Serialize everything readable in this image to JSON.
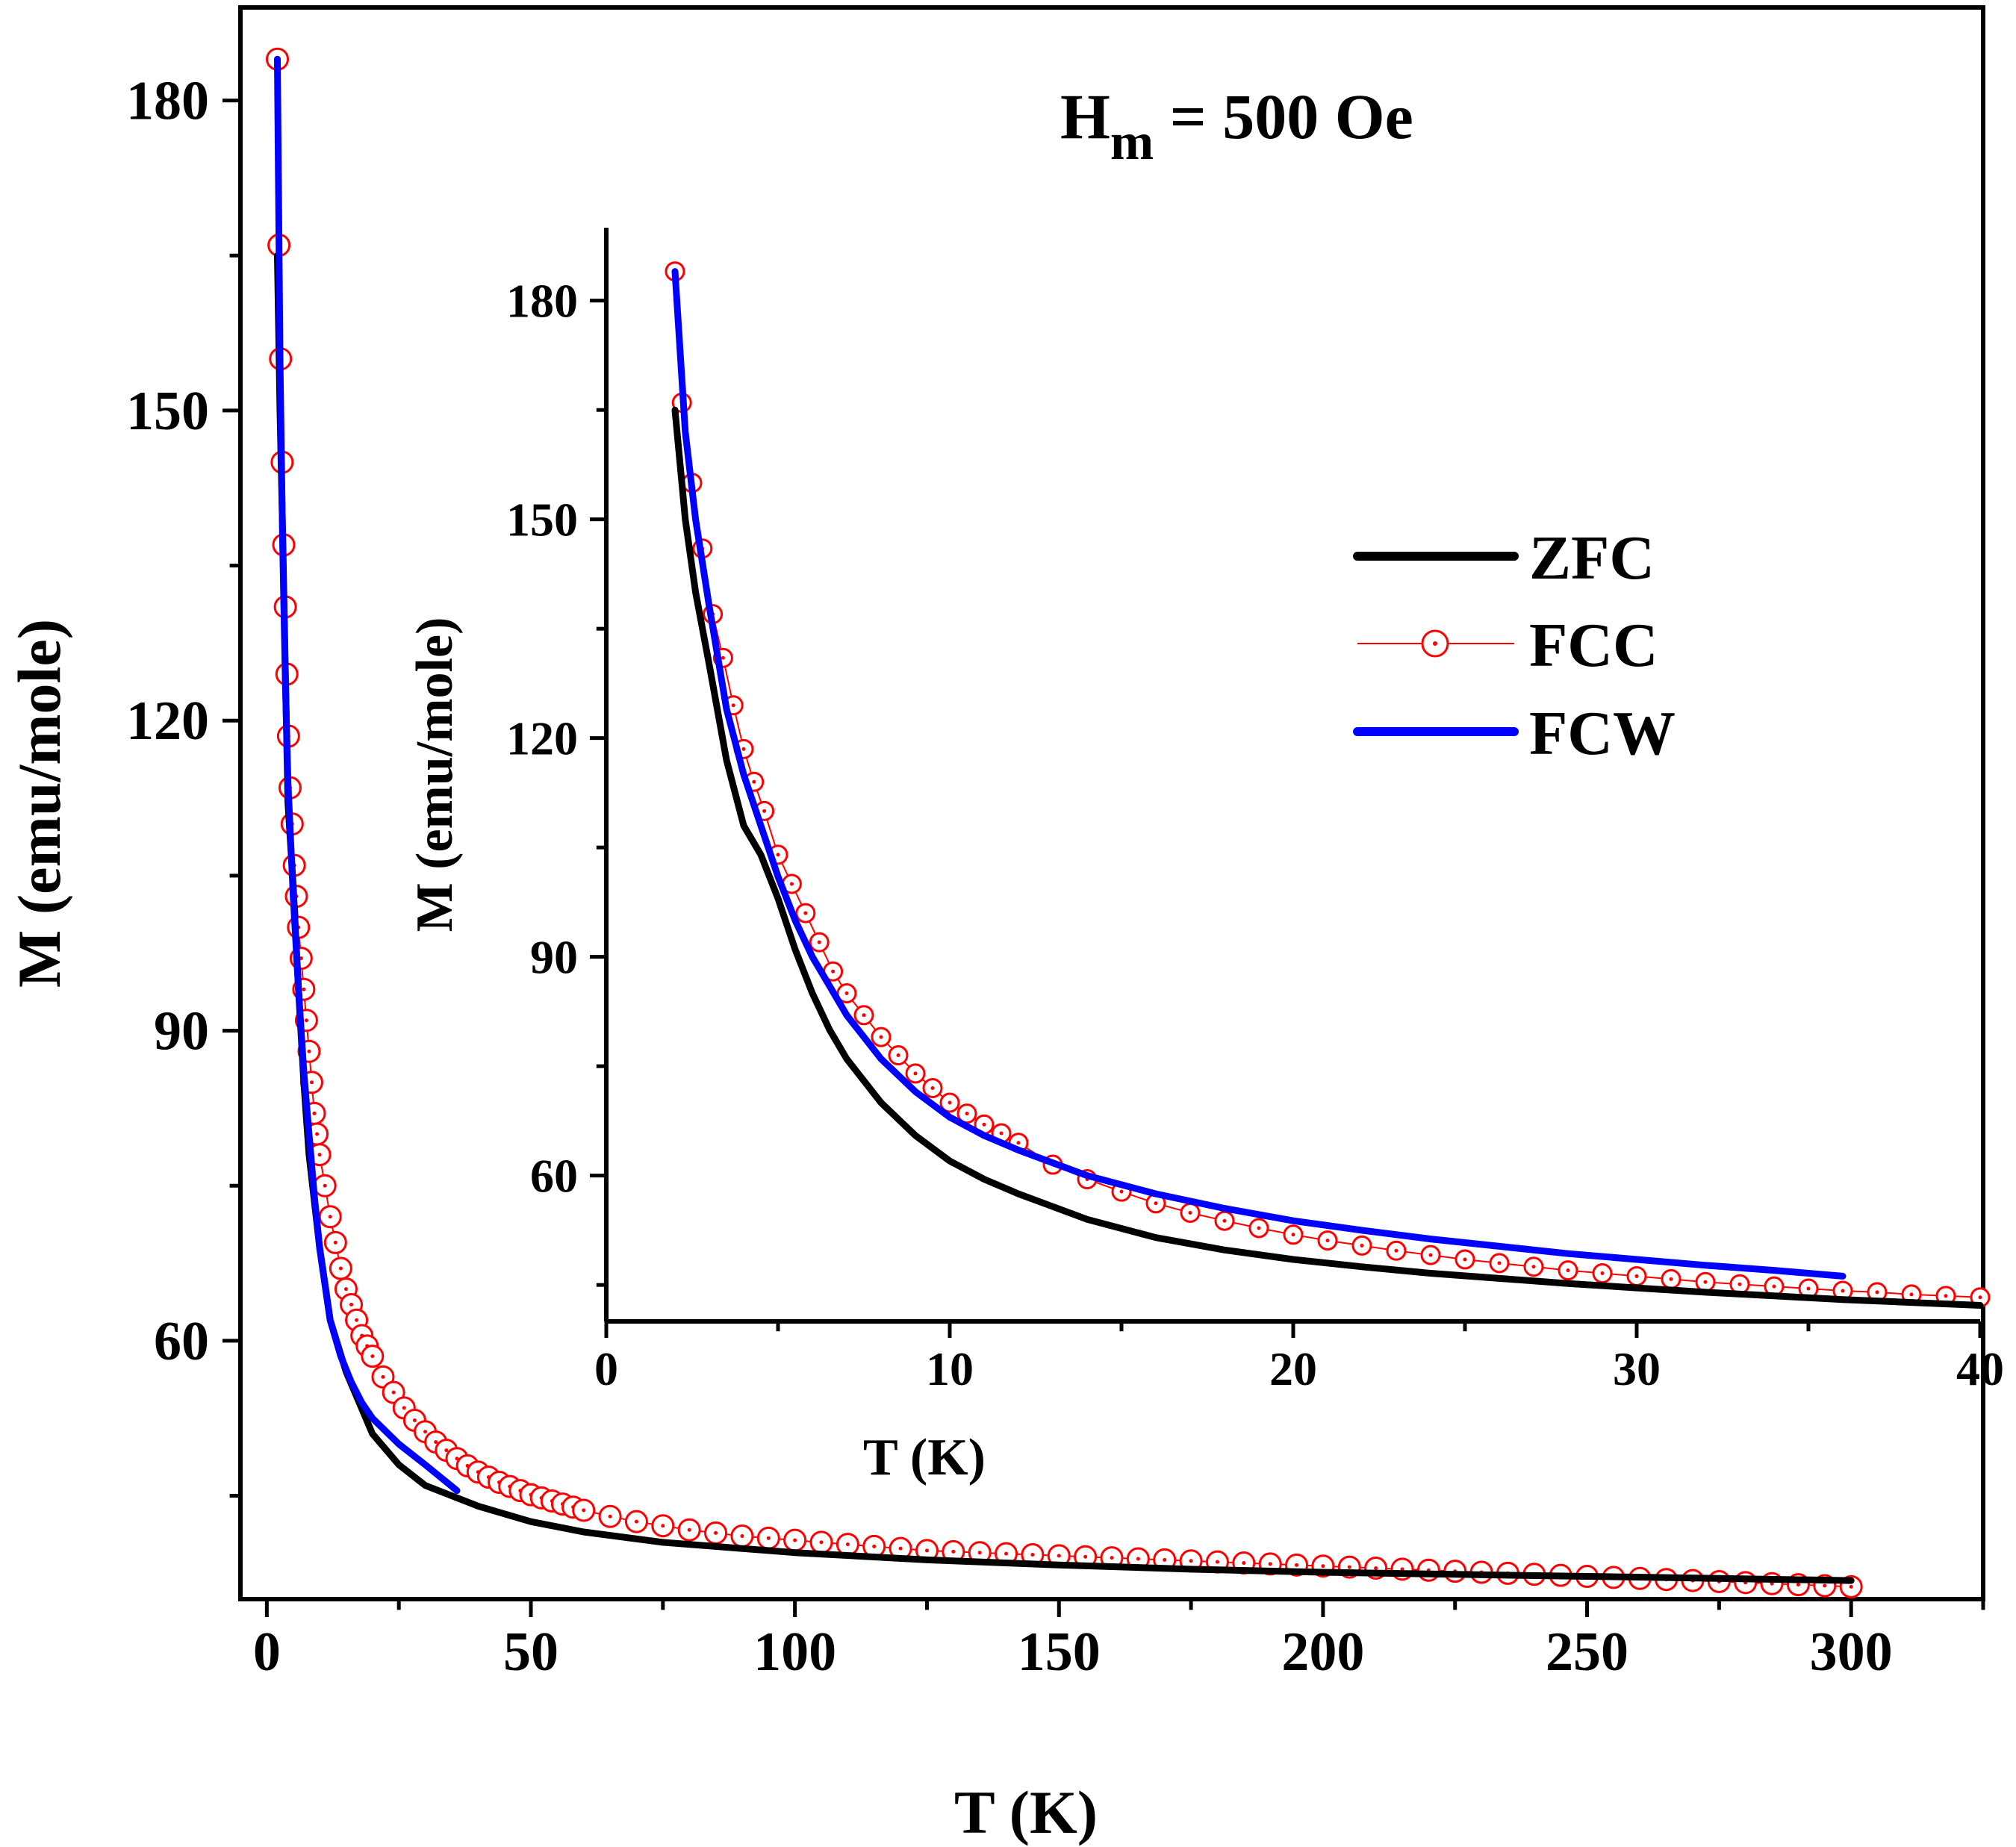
{
  "chart_data": [
    {
      "type": "line",
      "name": "main",
      "annotation": {
        "main": "H",
        "sub": "m",
        "rest": " = 500 Oe"
      },
      "xlabel": "T (K)",
      "ylabel": "M (emu/mole)",
      "xlim": [
        -5,
        325
      ],
      "ylim": [
        35,
        189
      ],
      "xticks": [
        "0",
        "50",
        "100",
        "150",
        "200",
        "250",
        "300"
      ],
      "yticks": [
        "60",
        "90",
        "120",
        "150",
        "180"
      ],
      "series": [
        {
          "name": "ZFC",
          "style": "line",
          "color": "#000000",
          "x": [
            2,
            2.5,
            3,
            3.5,
            4,
            5,
            6,
            7,
            8,
            10,
            12,
            15,
            20,
            25,
            30,
            40,
            50,
            60,
            75,
            100,
            125,
            150,
            175,
            200,
            225,
            250,
            275,
            300
          ],
          "y": [
            165,
            150,
            138,
            125,
            112,
            104,
            94,
            85,
            78,
            69,
            62,
            57,
            51,
            48,
            46,
            44,
            42.5,
            41.5,
            40.5,
            39.5,
            38.8,
            38.3,
            37.9,
            37.6,
            37.4,
            37.2,
            37.0,
            36.8
          ]
        },
        {
          "name": "FCC",
          "style": "markers",
          "color": "#ff0000",
          "x": [
            2,
            2.3,
            2.6,
            2.9,
            3.2,
            3.5,
            3.8,
            4.1,
            4.4,
            4.8,
            5.2,
            5.6,
            6,
            6.5,
            7,
            7.5,
            8,
            8.5,
            9,
            9.5,
            10,
            11,
            12,
            13,
            14,
            15,
            16,
            17,
            18,
            19,
            20,
            22,
            24,
            26,
            28,
            30,
            32,
            34,
            36,
            38,
            40,
            42,
            44,
            46,
            48,
            50,
            52,
            54,
            56,
            58,
            60,
            65,
            70,
            75,
            80,
            85,
            90,
            95,
            100,
            105,
            110,
            115,
            120,
            125,
            130,
            135,
            140,
            145,
            150,
            155,
            160,
            165,
            170,
            175,
            180,
            185,
            190,
            195,
            200,
            205,
            210,
            215,
            220,
            225,
            230,
            235,
            240,
            245,
            250,
            255,
            260,
            265,
            270,
            275,
            280,
            285,
            290,
            295,
            300
          ],
          "y": [
            184,
            166,
            155,
            145,
            137,
            131,
            124.5,
            118.5,
            113.5,
            110,
            106,
            103,
            100,
            97,
            94,
            91,
            88,
            85,
            82,
            80,
            78,
            75,
            72,
            69.5,
            67,
            65,
            63.5,
            62,
            60.5,
            59.5,
            58.5,
            56.5,
            55,
            53.5,
            52.3,
            51.2,
            50.2,
            49.4,
            48.6,
            47.9,
            47.3,
            46.8,
            46.3,
            45.9,
            45.5,
            45.1,
            44.8,
            44.5,
            44.2,
            43.9,
            43.6,
            43.0,
            42.5,
            42.1,
            41.7,
            41.4,
            41.1,
            40.9,
            40.7,
            40.5,
            40.3,
            40.1,
            39.9,
            39.7,
            39.6,
            39.5,
            39.4,
            39.3,
            39.2,
            39.1,
            39.0,
            38.9,
            38.8,
            38.7,
            38.6,
            38.5,
            38.4,
            38.3,
            38.2,
            38.1,
            38.0,
            37.9,
            37.8,
            37.7,
            37.6,
            37.5,
            37.4,
            37.3,
            37.2,
            37.1,
            37.0,
            36.9,
            36.8,
            36.7,
            36.6,
            36.5,
            36.4,
            36.3,
            36.2
          ]
        },
        {
          "name": "FCW",
          "style": "line",
          "color": "#0000ff",
          "x": [
            2,
            2.5,
            3,
            3.5,
            4,
            5,
            6,
            7,
            8,
            9,
            10,
            12,
            14,
            16,
            18,
            20,
            22,
            25,
            30,
            36
          ],
          "y": [
            184,
            155,
            137,
            124,
            114,
            103,
            94,
            86,
            80,
            74,
            69,
            62,
            58.5,
            56,
            54,
            52.5,
            51.5,
            50,
            48,
            45.5
          ]
        }
      ]
    },
    {
      "type": "line",
      "name": "inset",
      "xlabel": "T (K)",
      "ylabel": "M (emu/mole)",
      "xlim": [
        0,
        40
      ],
      "ylim": [
        40,
        190
      ],
      "xticks": [
        "0",
        "10",
        "20",
        "30",
        "40"
      ],
      "yticks": [
        "60",
        "90",
        "120",
        "150",
        "180"
      ],
      "legend": {
        "position": "top-right",
        "entries": [
          "ZFC",
          "FCC",
          "FCW"
        ]
      },
      "series": [
        {
          "name": "ZFC",
          "style": "line",
          "color": "#000000",
          "x": [
            2,
            2.3,
            2.6,
            3,
            3.5,
            4,
            4.5,
            5,
            5.5,
            6,
            6.5,
            7,
            8,
            9,
            10,
            11,
            12,
            14,
            16,
            18,
            20,
            22,
            24,
            26,
            28,
            30,
            32,
            34,
            36,
            38,
            40
          ],
          "y": [
            165,
            150,
            140,
            130,
            117,
            108,
            104,
            98,
            91,
            85,
            80,
            76,
            70,
            65.5,
            62,
            59.5,
            57.5,
            54,
            51.5,
            49.8,
            48.5,
            47.5,
            46.6,
            45.9,
            45.2,
            44.6,
            44.0,
            43.5,
            43.0,
            42.6,
            42.2
          ]
        },
        {
          "name": "FCC",
          "style": "markers",
          "color": "#ff0000",
          "x": [
            2,
            2.2,
            2.5,
            2.8,
            3.1,
            3.4,
            3.7,
            4,
            4.3,
            4.6,
            5,
            5.4,
            5.8,
            6.2,
            6.6,
            7,
            7.5,
            8,
            8.5,
            9,
            9.5,
            10,
            10.5,
            11,
            11.5,
            12,
            13,
            14,
            15,
            16,
            17,
            18,
            19,
            20,
            21,
            22,
            23,
            24,
            25,
            26,
            27,
            28,
            29,
            30,
            31,
            32,
            33,
            34,
            35,
            36,
            37,
            38,
            39,
            40
          ],
          "y": [
            184,
            166,
            155,
            146,
            137,
            131,
            124.5,
            118.5,
            114,
            110,
            104,
            100,
            96,
            92,
            88,
            85,
            82,
            79,
            76.5,
            74,
            72,
            70,
            68.5,
            67,
            65.8,
            64.5,
            61.5,
            59.5,
            57.8,
            56.2,
            54.9,
            53.8,
            52.8,
            51.9,
            51.1,
            50.4,
            49.7,
            49.1,
            48.5,
            48.0,
            47.5,
            47.0,
            46.6,
            46.2,
            45.8,
            45.4,
            45.1,
            44.8,
            44.5,
            44.2,
            44.0,
            43.7,
            43.5,
            43.3
          ]
        },
        {
          "name": "FCW",
          "style": "line",
          "color": "#0000ff",
          "x": [
            2,
            2.3,
            2.6,
            3,
            3.5,
            4,
            4.5,
            5,
            5.5,
            6,
            6.5,
            7,
            8,
            9,
            10,
            11,
            12,
            14,
            16,
            18,
            20,
            22,
            24,
            26,
            28,
            30,
            32,
            34,
            36
          ],
          "y": [
            184,
            162,
            150,
            138,
            124,
            115,
            108,
            101,
            95,
            90,
            86,
            82,
            76,
            71.5,
            68,
            65.5,
            63.5,
            60,
            57.5,
            55.5,
            53.8,
            52.5,
            51.3,
            50.3,
            49.3,
            48.5,
            47.7,
            47.0,
            46.2
          ]
        }
      ]
    }
  ]
}
